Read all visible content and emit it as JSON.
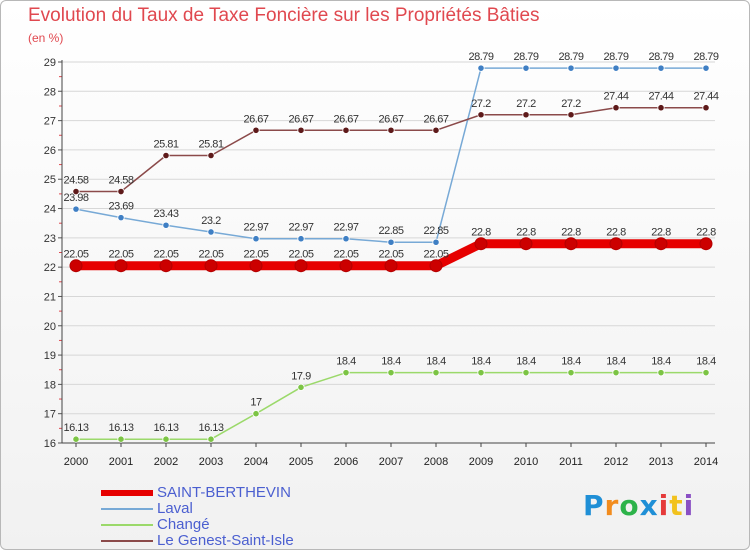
{
  "header": {
    "title": "Evolution du Taux de Taxe Foncière sur les Propriétés Bâties",
    "unit": "(en %)"
  },
  "chart_data": {
    "type": "line",
    "title": "Evolution du Taux de Taxe Foncière sur les Propriétés Bâties",
    "ylabel": "(en %)",
    "xlabel": "",
    "x": [
      "2000",
      "2001",
      "2002",
      "2003",
      "2004",
      "2005",
      "2006",
      "2007",
      "2008",
      "2009",
      "2010",
      "2011",
      "2012",
      "2013",
      "2014"
    ],
    "ylim": [
      16,
      29
    ],
    "yticks": [
      "16",
      "17",
      "18",
      "19",
      "20",
      "21",
      "22",
      "23",
      "24",
      "25",
      "26",
      "27",
      "28",
      "29"
    ],
    "grid": "horizontal",
    "legend_position": "bottom-left",
    "series": [
      {
        "name": "SAINT-BERTHEVIN",
        "color": "#e60000",
        "point_color": "#cc0000",
        "values": [
          22.05,
          22.05,
          22.05,
          22.05,
          22.05,
          22.05,
          22.05,
          22.05,
          22.05,
          22.8,
          22.8,
          22.8,
          22.8,
          22.8,
          22.8
        ],
        "labels": [
          "22.05",
          "22.05",
          "22.05",
          "22.05",
          "22.05",
          "22.05",
          "22.05",
          "22.05",
          "22.05",
          "22.8",
          "22.8",
          "22.8",
          "22.8",
          "22.8",
          "22.8"
        ]
      },
      {
        "name": "Laval",
        "color": "#77a9d6",
        "point_color": "#3f7fc4",
        "values": [
          23.98,
          23.69,
          23.43,
          23.2,
          22.97,
          22.97,
          22.97,
          22.85,
          22.85,
          28.79,
          28.79,
          28.79,
          28.79,
          28.79,
          28.79
        ],
        "labels": [
          "23.98",
          "23.69",
          "23.43",
          "23.2",
          "22.97",
          "22.97",
          "22.97",
          "22.85",
          "22.85",
          "28.79",
          "28.79",
          "28.79",
          "28.79",
          "28.79",
          "28.79"
        ]
      },
      {
        "name": "Changé",
        "color": "#9bd96a",
        "point_color": "#7cc444",
        "values": [
          16.13,
          16.13,
          16.13,
          16.13,
          17,
          17.9,
          18.4,
          18.4,
          18.4,
          18.4,
          18.4,
          18.4,
          18.4,
          18.4,
          18.4
        ],
        "labels": [
          "16.13",
          "16.13",
          "16.13",
          "16.13",
          "17",
          "17.9",
          "18.4",
          "18.4",
          "18.4",
          "18.4",
          "18.4",
          "18.4",
          "18.4",
          "18.4",
          "18.4"
        ]
      },
      {
        "name": "Le Genest-Saint-Isle",
        "color": "#8b4a4a",
        "point_color": "#5e1a1a",
        "values": [
          24.58,
          24.58,
          25.81,
          25.81,
          26.67,
          26.67,
          26.67,
          26.67,
          26.67,
          27.2,
          27.2,
          27.2,
          27.44,
          27.44,
          27.44
        ],
        "labels": [
          "24.58",
          "24.58",
          "25.81",
          "25.81",
          "26.67",
          "26.67",
          "26.67",
          "26.67",
          "26.67",
          "27.2",
          "27.2",
          "27.2",
          "27.44",
          "27.44",
          "27.44"
        ]
      }
    ]
  },
  "logo": {
    "text": "Proxiti",
    "letters": [
      "P",
      "r",
      "o",
      "x",
      "i",
      "t",
      "i"
    ],
    "colors": [
      "#1f8fd6",
      "#f28c1e",
      "#2db34a",
      "#1f8fd6",
      "#e53a3a",
      "#f2c21e",
      "#8a4fc4"
    ]
  }
}
